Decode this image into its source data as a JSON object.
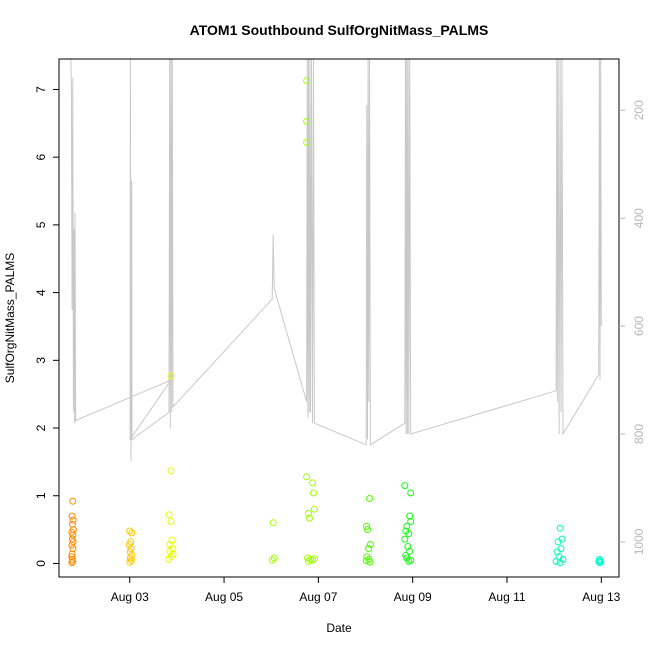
{
  "chart_data": {
    "type": "scatter",
    "title": "ATOM1 Southbound SulfOrgNitMass_PALMS",
    "xlabel": "Date",
    "ylabel": "SulfOrgNitMass_PALMS",
    "xlim": [
      "2016-08-01T12:00",
      "2016-08-13T09:00"
    ],
    "ylim": [
      -0.2,
      7.45
    ],
    "x_ticks": [
      "Aug 03",
      "Aug 05",
      "Aug 07",
      "Aug 09",
      "Aug 11",
      "Aug 13"
    ],
    "y_ticks": [
      "0",
      "1",
      "2",
      "3",
      "4",
      "5",
      "6",
      "7"
    ],
    "right_axis": {
      "ticks": [
        "200",
        "400",
        "600",
        "800",
        "1000"
      ],
      "lim_top_to_bottom": [
        105,
        1065
      ],
      "line_color": "#c8c8c8"
    },
    "grid": false,
    "series": [
      {
        "color": "#ff8c00",
        "points": [
          [
            "2016-08-01T19:00",
            0.92
          ],
          [
            "2016-08-01T18:40",
            0.7
          ],
          [
            "2016-08-01T19:10",
            0.64
          ],
          [
            "2016-08-01T18:50",
            0.58
          ],
          [
            "2016-08-01T19:20",
            0.5
          ],
          [
            "2016-08-01T18:30",
            0.46
          ],
          [
            "2016-08-01T19:00",
            0.42
          ],
          [
            "2016-08-01T18:45",
            0.36
          ],
          [
            "2016-08-01T19:15",
            0.32
          ],
          [
            "2016-08-01T18:35",
            0.27
          ],
          [
            "2016-08-01T19:05",
            0.22
          ],
          [
            "2016-08-01T18:40",
            0.14
          ],
          [
            "2016-08-01T18:30",
            0.1
          ],
          [
            "2016-08-01T18:50",
            0.06
          ],
          [
            "2016-08-01T19:00",
            0.03
          ],
          [
            "2016-08-01T18:35",
            0.01
          ]
        ]
      },
      {
        "color": "#ffc800",
        "points": [
          [
            "2016-08-03T00:00",
            0.48
          ],
          [
            "2016-08-03T01:00",
            0.45
          ],
          [
            "2016-08-03T00:30",
            0.32
          ],
          [
            "2016-08-02T23:50",
            0.28
          ],
          [
            "2016-08-03T00:40",
            0.22
          ],
          [
            "2016-08-03T00:10",
            0.17
          ],
          [
            "2016-08-03T01:10",
            0.12
          ],
          [
            "2016-08-03T00:20",
            0.08
          ],
          [
            "2016-08-03T00:50",
            0.05
          ],
          [
            "2016-08-03T00:05",
            0.02
          ]
        ]
      },
      {
        "color": "#e6ff00",
        "points": [
          [
            "2016-08-03T21:00",
            1.37
          ],
          [
            "2016-08-03T20:00",
            0.72
          ],
          [
            "2016-08-03T21:00",
            0.62
          ],
          [
            "2016-08-03T21:30",
            0.34
          ],
          [
            "2016-08-03T20:30",
            0.28
          ],
          [
            "2016-08-03T21:40",
            0.22
          ],
          [
            "2016-08-03T20:20",
            0.18
          ],
          [
            "2016-08-03T22:00",
            0.14
          ],
          [
            "2016-08-03T21:10",
            0.1
          ],
          [
            "2016-08-03T19:50",
            0.06
          ],
          [
            "2016-08-03T21:00",
            2.77
          ]
        ]
      },
      {
        "color": "#a0ff00",
        "points": [
          [
            "2016-08-06T01:00",
            0.6
          ],
          [
            "2016-08-06T01:30",
            0.08
          ],
          [
            "2016-08-06T00:30",
            0.05
          ],
          [
            "2016-08-06T18:00",
            7.13
          ],
          [
            "2016-08-06T18:00",
            6.53
          ],
          [
            "2016-08-06T18:00",
            6.22
          ],
          [
            "2016-08-06T18:00",
            1.28
          ],
          [
            "2016-08-06T21:00",
            1.19
          ],
          [
            "2016-08-06T21:30",
            1.04
          ],
          [
            "2016-08-06T22:00",
            0.8
          ],
          [
            "2016-08-06T19:00",
            0.74
          ],
          [
            "2016-08-06T19:30",
            0.67
          ],
          [
            "2016-08-06T18:30",
            0.08
          ],
          [
            "2016-08-06T20:00",
            0.06
          ],
          [
            "2016-08-06T21:00",
            0.05
          ],
          [
            "2016-08-06T22:00",
            0.07
          ],
          [
            "2016-08-06T19:00",
            0.03
          ]
        ]
      },
      {
        "color": "#50ff00",
        "points": [
          [
            "2016-08-08T02:00",
            0.96
          ],
          [
            "2016-08-08T00:30",
            0.55
          ],
          [
            "2016-08-08T01:00",
            0.5
          ],
          [
            "2016-08-08T02:30",
            0.28
          ],
          [
            "2016-08-08T01:30",
            0.22
          ],
          [
            "2016-08-08T00:40",
            0.1
          ],
          [
            "2016-08-08T01:50",
            0.06
          ],
          [
            "2016-08-08T00:20",
            0.04
          ],
          [
            "2016-08-08T02:10",
            0.02
          ]
        ]
      },
      {
        "color": "#10ff10",
        "points": [
          [
            "2016-08-08T20:00",
            1.15
          ],
          [
            "2016-08-08T23:00",
            1.04
          ],
          [
            "2016-08-08T22:30",
            0.7
          ],
          [
            "2016-08-08T23:00",
            0.62
          ],
          [
            "2016-08-08T21:00",
            0.55
          ],
          [
            "2016-08-08T20:30",
            0.48
          ],
          [
            "2016-08-08T22:00",
            0.44
          ],
          [
            "2016-08-08T20:00",
            0.36
          ],
          [
            "2016-08-08T21:30",
            0.25
          ],
          [
            "2016-08-08T22:30",
            0.18
          ],
          [
            "2016-08-08T20:30",
            0.12
          ],
          [
            "2016-08-08T21:00",
            0.08
          ],
          [
            "2016-08-08T23:00",
            0.05
          ],
          [
            "2016-08-08T22:00",
            0.03
          ]
        ]
      },
      {
        "color": "#00ffb0",
        "points": [
          [
            "2016-08-12T03:00",
            0.52
          ],
          [
            "2016-08-12T04:00",
            0.36
          ],
          [
            "2016-08-12T02:00",
            0.32
          ],
          [
            "2016-08-12T03:30",
            0.22
          ],
          [
            "2016-08-12T01:30",
            0.17
          ],
          [
            "2016-08-12T02:30",
            0.1
          ],
          [
            "2016-08-12T04:30",
            0.06
          ],
          [
            "2016-08-12T01:00",
            0.03
          ],
          [
            "2016-08-12T03:00",
            0.01
          ]
        ]
      },
      {
        "color": "#00ffcc",
        "points": [
          [
            "2016-08-12T23:00",
            0.06
          ],
          [
            "2016-08-12T23:20",
            0.04
          ],
          [
            "2016-08-12T22:40",
            0.03
          ],
          [
            "2016-08-12T23:40",
            0.02
          ],
          [
            "2016-08-12T23:10",
            0.01
          ]
        ]
      }
    ],
    "right_axis_series": {
      "name": "",
      "points": [
        [
          "2016-08-01T18:00",
          105
        ],
        [
          "2016-08-01T18:20",
          150
        ],
        [
          "2016-08-01T18:40",
          570
        ],
        [
          "2016-08-01T19:00",
          140
        ],
        [
          "2016-08-01T19:20",
          760
        ],
        [
          "2016-08-01T19:40",
          420
        ],
        [
          "2016-08-01T20:00",
          780
        ],
        [
          "2016-08-01T20:10",
          390
        ],
        [
          "2016-08-01T20:30",
          775
        ],
        [
          "2016-08-03T21:00",
          700
        ],
        [
          "2016-08-03T00:10",
          810
        ],
        [
          "2016-08-03T00:20",
          105
        ],
        [
          "2016-08-03T00:40",
          850
        ],
        [
          "2016-08-03T01:00",
          330
        ],
        [
          "2016-08-03T01:10",
          810
        ],
        [
          "2016-08-03T20:00",
          760
        ],
        [
          "2016-08-03T20:20",
          105
        ],
        [
          "2016-08-03T20:40",
          790
        ],
        [
          "2016-08-03T21:00",
          105
        ],
        [
          "2016-08-03T21:20",
          760
        ],
        [
          "2016-08-03T21:40",
          105
        ],
        [
          "2016-08-03T22:00",
          750
        ],
        [
          "2016-08-06T00:30",
          550
        ],
        [
          "2016-08-06T01:00",
          430
        ],
        [
          "2016-08-06T01:30",
          530
        ],
        [
          "2016-08-06T18:00",
          740
        ],
        [
          "2016-08-06T18:20",
          105
        ],
        [
          "2016-08-06T18:40",
          770
        ],
        [
          "2016-08-06T19:00",
          105
        ],
        [
          "2016-08-06T19:20",
          760
        ],
        [
          "2016-08-06T19:40",
          105
        ],
        [
          "2016-08-06T20:00",
          760
        ],
        [
          "2016-08-06T20:30",
          105
        ],
        [
          "2016-08-06T21:00",
          780
        ],
        [
          "2016-08-06T21:30",
          105
        ],
        [
          "2016-08-06T22:00",
          780
        ],
        [
          "2016-08-08T00:20",
          820
        ],
        [
          "2016-08-08T00:40",
          190
        ],
        [
          "2016-08-08T01:00",
          810
        ],
        [
          "2016-08-08T01:20",
          105
        ],
        [
          "2016-08-08T01:40",
          740
        ],
        [
          "2016-08-08T02:00",
          105
        ],
        [
          "2016-08-08T02:30",
          820
        ],
        [
          "2016-08-08T20:00",
          780
        ],
        [
          "2016-08-08T20:20",
          105
        ],
        [
          "2016-08-08T20:40",
          800
        ],
        [
          "2016-08-08T21:00",
          105
        ],
        [
          "2016-08-08T21:20",
          800
        ],
        [
          "2016-08-08T21:40",
          105
        ],
        [
          "2016-08-08T22:00",
          800
        ],
        [
          "2016-08-08T22:30",
          105
        ],
        [
          "2016-08-08T23:00",
          800
        ],
        [
          "2016-08-12T01:00",
          720
        ],
        [
          "2016-08-12T01:20",
          105
        ],
        [
          "2016-08-12T01:40",
          740
        ],
        [
          "2016-08-12T02:00",
          105
        ],
        [
          "2016-08-12T02:30",
          800
        ],
        [
          "2016-08-12T03:00",
          105
        ],
        [
          "2016-08-12T03:30",
          760
        ],
        [
          "2016-08-12T04:00",
          105
        ],
        [
          "2016-08-12T04:30",
          800
        ],
        [
          "2016-08-12T22:40",
          690
        ],
        [
          "2016-08-12T23:00",
          105
        ],
        [
          "2016-08-12T23:20",
          700
        ],
        [
          "2016-08-12T23:40",
          105
        ],
        [
          "2016-08-13T00:00",
          600
        ]
      ]
    }
  }
}
